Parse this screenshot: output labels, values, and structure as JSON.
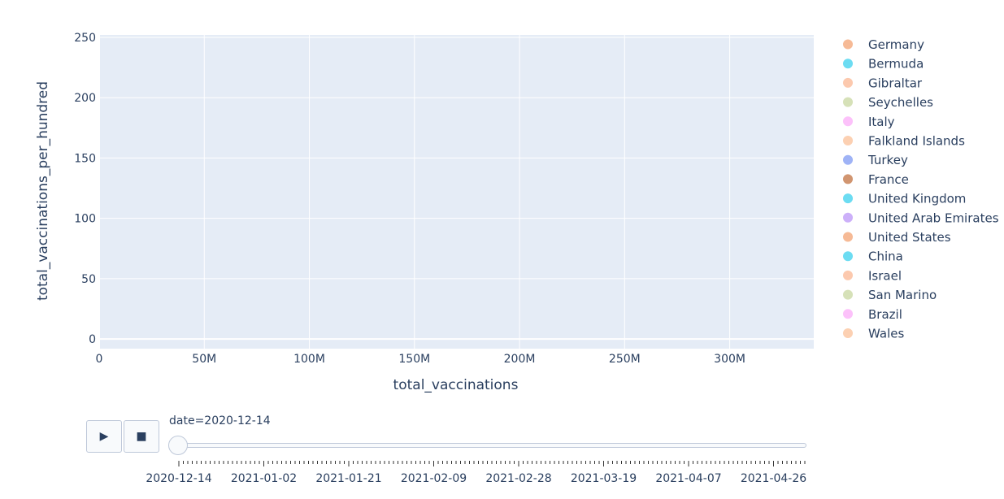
{
  "chart_data": {
    "type": "scatter",
    "xlabel": "total_vaccinations",
    "ylabel": "total_vaccinations_per_hundred",
    "xlim": [
      0,
      340000000
    ],
    "ylim": [
      -8,
      252
    ],
    "x_ticks": [
      {
        "value": 0,
        "label": "0"
      },
      {
        "value": 50000000,
        "label": "50M"
      },
      {
        "value": 100000000,
        "label": "100M"
      },
      {
        "value": 150000000,
        "label": "150M"
      },
      {
        "value": 200000000,
        "label": "200M"
      },
      {
        "value": 250000000,
        "label": "250M"
      },
      {
        "value": 300000000,
        "label": "300M"
      }
    ],
    "y_ticks": [
      {
        "value": 0,
        "label": "0"
      },
      {
        "value": 50,
        "label": "50"
      },
      {
        "value": 100,
        "label": "100"
      },
      {
        "value": 150,
        "label": "150"
      },
      {
        "value": 200,
        "label": "200"
      },
      {
        "value": 250,
        "label": "250"
      }
    ],
    "grid": true,
    "legend_position": "right",
    "series": [
      {
        "name": "Germany",
        "color": "#f4ae84",
        "points": []
      },
      {
        "name": "Bermuda",
        "color": "#52d6f0",
        "points": []
      },
      {
        "name": "Gibraltar",
        "color": "#fbbfa0",
        "points": []
      },
      {
        "name": "Seychelles",
        "color": "#cfdcab",
        "points": []
      },
      {
        "name": "Italy",
        "color": "#fbb6f9",
        "points": []
      },
      {
        "name": "Falkland Islands",
        "color": "#fcc8a4",
        "points": []
      },
      {
        "name": "Turkey",
        "color": "#8ea6f5",
        "points": []
      },
      {
        "name": "France",
        "color": "#c98357",
        "points": []
      },
      {
        "name": "United Kingdom",
        "color": "#52d6f0",
        "points": []
      },
      {
        "name": "United Arab Emirates",
        "color": "#c3a2f8",
        "points": []
      },
      {
        "name": "United States",
        "color": "#f4ae84",
        "points": []
      },
      {
        "name": "China",
        "color": "#52d6f0",
        "points": []
      },
      {
        "name": "Israel",
        "color": "#fbbfa0",
        "points": []
      },
      {
        "name": "San Marino",
        "color": "#cfdcab",
        "points": []
      },
      {
        "name": "Brazil",
        "color": "#fbb6f9",
        "points": []
      },
      {
        "name": "Wales",
        "color": "#fcc8a4",
        "points": []
      }
    ]
  },
  "controls": {
    "play_icon": "play-icon",
    "stop_icon": "stop-icon",
    "play_symbol": "▶",
    "stop_symbol": "■"
  },
  "slider": {
    "current_label": "date=2020-12-14",
    "start_date": "2020-12-14",
    "end_date": "2021-05-03",
    "value": "2020-12-14",
    "date_labels": [
      "2020-12-14",
      "2021-01-02",
      "2021-01-21",
      "2021-02-09",
      "2021-02-28",
      "2021-03-19",
      "2021-04-07",
      "2021-04-26"
    ]
  }
}
